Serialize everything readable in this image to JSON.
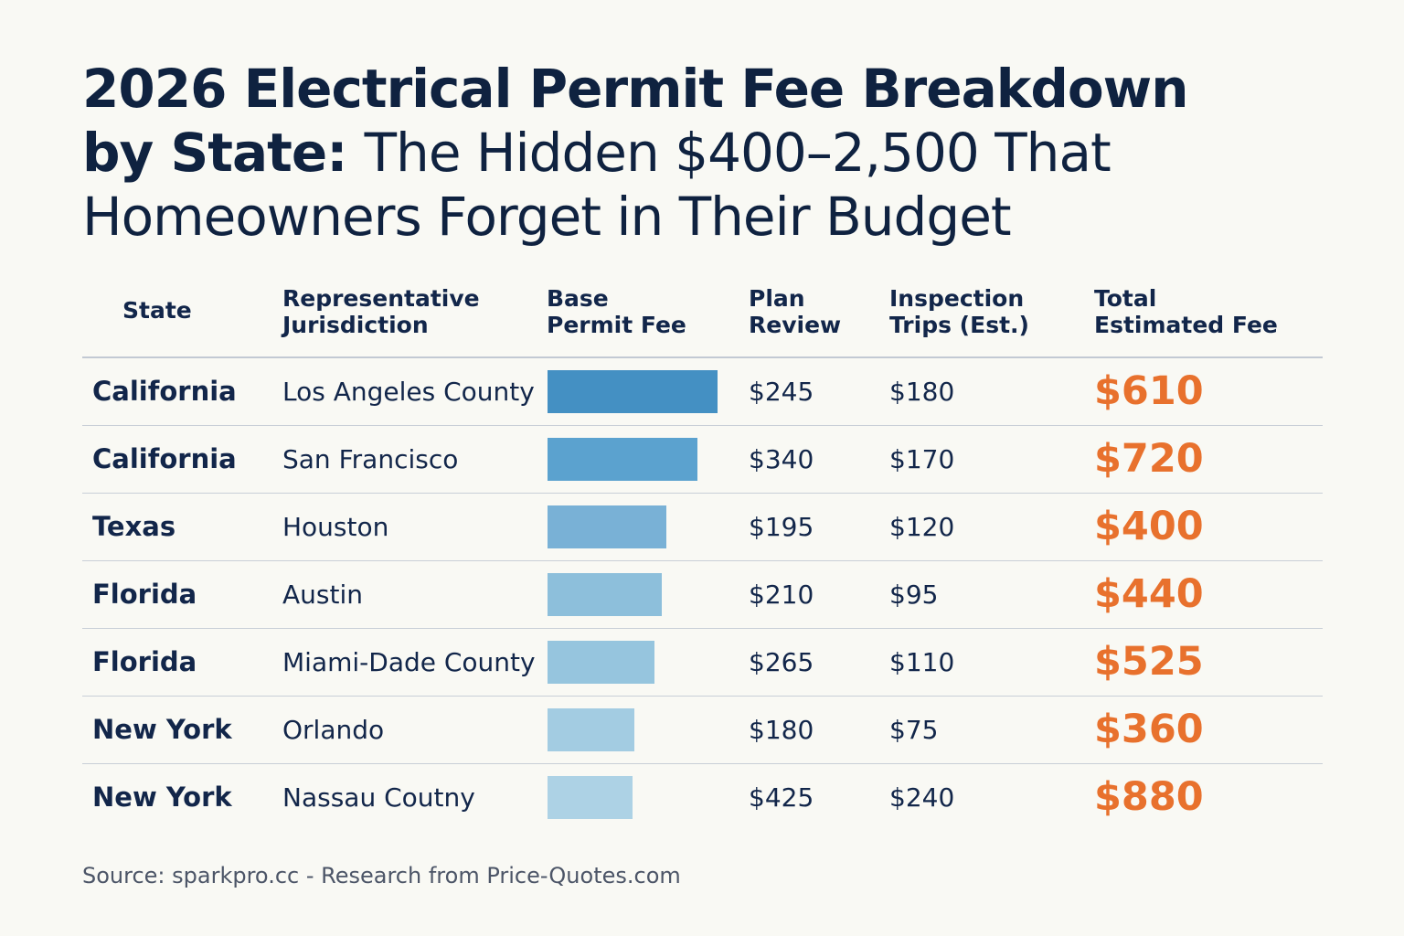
{
  "title": {
    "line1_bold": "2026 Electrical Permit Fee Breakdown",
    "line2_bold": "by State:",
    "line2_rest": "The Hidden $400–2,500 That",
    "line3": "Homeowners Forget in Their Budget"
  },
  "source": "Source: sparkpro.cc - Research from Price-Quotes.com",
  "chart_data": {
    "type": "table",
    "columns": [
      "State",
      "Representative\nJurisdiction",
      "Base\nPermit Fee",
      "Plan\nReview",
      "Inspection\nTrips (Est.)",
      "Total\nEstimated Fee"
    ],
    "bar_max": 1.0,
    "rows": [
      {
        "state": "California",
        "jurisdiction": "Los Angeles County",
        "base_bar": 1.0,
        "bar_color": "#4490c3",
        "plan_review": "$245",
        "inspection": "$180",
        "total": "$610"
      },
      {
        "state": "California",
        "jurisdiction": "San Francisco",
        "base_bar": 0.88,
        "bar_color": "#5ba2cf",
        "plan_review": "$340",
        "inspection": "$170",
        "total": "$720"
      },
      {
        "state": "Texas",
        "jurisdiction": "Houston",
        "base_bar": 0.7,
        "bar_color": "#79b1d6",
        "plan_review": "$195",
        "inspection": "$120",
        "total": "$400"
      },
      {
        "state": "Florida",
        "jurisdiction": "Austin",
        "base_bar": 0.67,
        "bar_color": "#8dbfdb",
        "plan_review": "$210",
        "inspection": "$95",
        "total": "$440"
      },
      {
        "state": "Florida",
        "jurisdiction": "Miami-Dade County",
        "base_bar": 0.63,
        "bar_color": "#96c5de",
        "plan_review": "$265",
        "inspection": "$110",
        "total": "$525"
      },
      {
        "state": "New York",
        "jurisdiction": "Orlando",
        "base_bar": 0.51,
        "bar_color": "#a3cce2",
        "plan_review": "$180",
        "inspection": "$75",
        "total": "$360"
      },
      {
        "state": "New York",
        "jurisdiction": "Nassau Coutny",
        "base_bar": 0.5,
        "bar_color": "#add2e5",
        "plan_review": "$425",
        "inspection": "$240",
        "total": "$880"
      }
    ]
  }
}
